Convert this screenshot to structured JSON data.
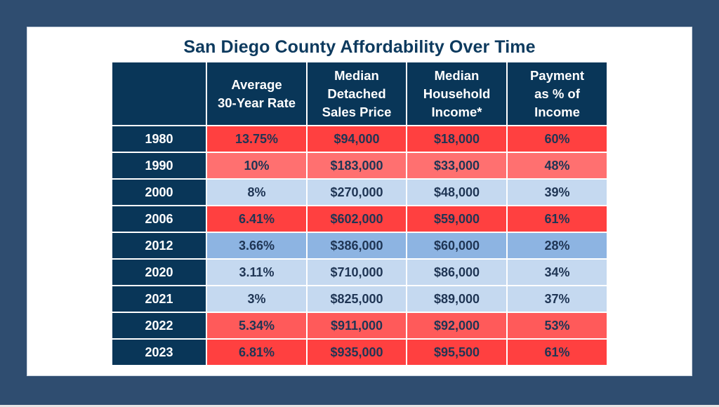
{
  "title": "San Diego County Affordability Over Time",
  "colors": {
    "frame": "#2f4d70",
    "header": "#093658",
    "title_text": "#0d3a5e",
    "cell_text": "#1f3554",
    "red_strong": "#ff4040",
    "red_medium": "#ff5a5a",
    "red_light": "#ff7070",
    "blue_light": "#c5d9f0",
    "blue_medium": "#8db4e2"
  },
  "columns": [
    {
      "key": "year",
      "label_lines": [
        ""
      ]
    },
    {
      "key": "rate",
      "label_lines": [
        "Average",
        "30-Year Rate"
      ]
    },
    {
      "key": "price",
      "label_lines": [
        "Median",
        "Detached",
        "Sales Price"
      ]
    },
    {
      "key": "income",
      "label_lines": [
        "Median",
        "Household",
        "Income*"
      ]
    },
    {
      "key": "payment_pct",
      "label_lines": [
        "Payment",
        "as % of",
        "Income"
      ]
    }
  ],
  "rows": [
    {
      "year": "1980",
      "rate": "13.75%",
      "price": "$94,000",
      "income": "$18,000",
      "payment_pct": "60%",
      "shade": "hot"
    },
    {
      "year": "1990",
      "rate": "10%",
      "price": "$183,000",
      "income": "$33,000",
      "payment_pct": "48%",
      "shade": "warm"
    },
    {
      "year": "2000",
      "rate": "8%",
      "price": "$270,000",
      "income": "$48,000",
      "payment_pct": "39%",
      "shade": "cool"
    },
    {
      "year": "2006",
      "rate": "6.41%",
      "price": "$602,000",
      "income": "$59,000",
      "payment_pct": "61%",
      "shade": "hot"
    },
    {
      "year": "2012",
      "rate": "3.66%",
      "price": "$386,000",
      "income": "$60,000",
      "payment_pct": "28%",
      "shade": "cold"
    },
    {
      "year": "2020",
      "rate": "3.11%",
      "price": "$710,000",
      "income": "$86,000",
      "payment_pct": "34%",
      "shade": "cool"
    },
    {
      "year": "2021",
      "rate": "3%",
      "price": "$825,000",
      "income": "$89,000",
      "payment_pct": "37%",
      "shade": "cool"
    },
    {
      "year": "2022",
      "rate": "5.34%",
      "price": "$911,000",
      "income": "$92,000",
      "payment_pct": "53%",
      "shade": "mild"
    },
    {
      "year": "2023",
      "rate": "6.81%",
      "price": "$935,000",
      "income": "$95,500",
      "payment_pct": "61%",
      "shade": "hot"
    }
  ]
}
